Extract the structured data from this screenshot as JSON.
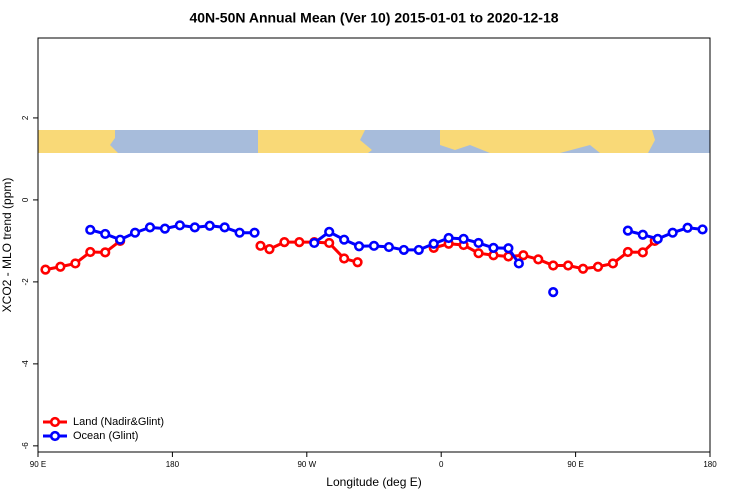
{
  "chart_data": {
    "type": "line",
    "title": "40N-50N Annual Mean (Ver 10)   2015-01-01 to 2020-12-18",
    "x_label": "Longitude (deg E)",
    "y_label": "XCO2 - MLO trend (ppm)",
    "xlim": [
      90,
      540
    ],
    "xticks": [
      {
        "value": 90,
        "label": "90 E"
      },
      180,
      {
        "value": 270,
        "label": "90 W"
      },
      {
        "value": 360,
        "label": "0"
      },
      {
        "value": 450,
        "label": "90 E"
      },
      {
        "value": 540,
        "label": "180"
      }
    ],
    "ylim": [
      -6.15,
      3.95
    ],
    "yticks": [
      2,
      0,
      -2,
      -4,
      -6
    ],
    "legend": "bottom-left",
    "series": [
      {
        "name": "Land (Nadir&Glint)",
        "color": "#ff0000",
        "x": [
          95,
          105,
          115,
          125,
          135,
          145,
          190,
          239,
          245,
          255,
          265,
          275,
          285,
          295,
          304,
          330,
          355,
          365,
          375,
          385,
          395,
          405,
          415,
          425,
          435,
          445,
          455,
          465,
          475,
          485,
          495,
          503
        ],
        "values": [
          -1.7,
          -1.63,
          -1.55,
          -1.27,
          -1.28,
          -1.0,
          null,
          -1.12,
          -1.2,
          -1.03,
          -1.03,
          -1.03,
          -1.05,
          -1.43,
          -1.52,
          null,
          -1.17,
          -1.07,
          -1.1,
          -1.3,
          -1.35,
          -1.38,
          -1.35,
          -1.45,
          -1.6,
          -1.6,
          -1.68,
          -1.63,
          -1.55,
          -1.27,
          -1.28,
          -1.0
        ]
      },
      {
        "name": "Ocean (Glint)",
        "color": "#0000ff",
        "x": [
          125,
          135,
          145,
          155,
          165,
          175,
          185,
          195,
          205,
          215,
          225,
          235,
          255,
          275,
          285,
          295,
          305,
          315,
          325,
          335,
          345,
          355,
          365,
          375,
          385,
          395,
          405,
          412,
          425,
          435,
          460,
          485,
          495,
          505,
          515,
          525,
          535
        ],
        "values": [
          -0.73,
          -0.83,
          -0.97,
          -0.8,
          -0.67,
          -0.7,
          -0.62,
          -0.67,
          -0.63,
          -0.67,
          -0.8,
          -0.8,
          null,
          -1.05,
          -0.78,
          -0.97,
          -1.13,
          -1.12,
          -1.15,
          -1.22,
          -1.22,
          -1.07,
          -0.93,
          -0.95,
          -1.05,
          -1.17,
          -1.18,
          -1.55,
          null,
          -2.25,
          null,
          -0.75,
          -0.85,
          -0.95,
          -0.8,
          -0.68,
          -0.72
        ]
      }
    ]
  }
}
